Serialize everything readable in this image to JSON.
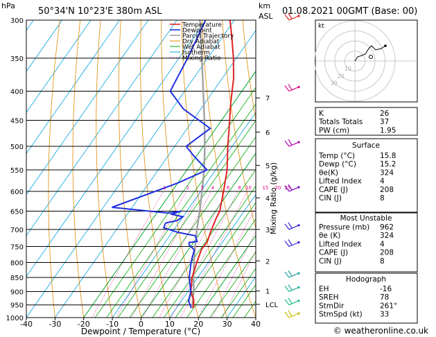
{
  "header": {
    "hpa_label": "hPa",
    "location": "50°34'N  10°23'E  380m  ASL",
    "km_label": "km",
    "asl_label": "ASL",
    "datetime": "01.08.2021  00GMT  (Base: 00)"
  },
  "footer": {
    "credit": "© weatheronline.co.uk"
  },
  "chart_data": {
    "type": "line",
    "title": "",
    "xlabel": "Dewpoint / Temperature (°C)",
    "ylabel": "hPa",
    "right_axis_label": "Mixing Ratio (g/kg)",
    "xlim": [
      -40,
      40
    ],
    "ylim": [
      1000,
      300
    ],
    "x_ticks": [
      -40,
      -30,
      -20,
      -10,
      0,
      10,
      20,
      30,
      40
    ],
    "pressure_levels": [
      300,
      350,
      400,
      450,
      500,
      550,
      600,
      650,
      700,
      750,
      800,
      850,
      900,
      950,
      1000
    ],
    "km_ticks": [
      {
        "label": "7",
        "p": 411
      },
      {
        "label": "6",
        "p": 472
      },
      {
        "label": "5",
        "p": 540
      },
      {
        "label": "4",
        "p": 616
      },
      {
        "label": "3",
        "p": 700
      },
      {
        "label": "2",
        "p": 795
      },
      {
        "label": "1",
        "p": 898
      },
      {
        "label": "LCL",
        "p": 948
      }
    ],
    "mixing_ratio_labels": [
      "1",
      "2",
      "3",
      "4",
      "6",
      "8",
      "10",
      "15",
      "20",
      "25"
    ],
    "mixing_ratios": [
      1,
      2,
      3,
      4,
      6,
      8,
      10,
      15,
      20,
      25
    ],
    "legend": [
      "Temperature",
      "Dewpoint",
      "Parcel Trajectory",
      "Dry Adiabat",
      "Wet Adiabat",
      "Isotherm",
      "Mixing Ratio"
    ],
    "colors": {
      "temperature": "#e02020",
      "dewpoint": "#1f2fe0",
      "parcel": "#a0a0a0",
      "dry_adiabat": "#e08a00",
      "wet_adiabat": "#00aa00",
      "isotherm": "#00a0e0",
      "mixing_ratio": "#e0008a"
    },
    "series": [
      {
        "name": "Temperature",
        "points": [
          [
            15.8,
            962
          ],
          [
            14,
            930
          ],
          [
            11,
            900
          ],
          [
            8,
            850
          ],
          [
            6,
            800
          ],
          [
            4.5,
            760
          ],
          [
            4.6,
            735
          ],
          [
            3.5,
            710
          ],
          [
            2,
            670
          ],
          [
            1.5,
            650
          ],
          [
            -2,
            600
          ],
          [
            -6,
            550
          ],
          [
            -11.5,
            500
          ],
          [
            -16,
            460
          ],
          [
            -21,
            420
          ],
          [
            -26,
            380
          ],
          [
            -31,
            350
          ],
          [
            -37,
            320
          ],
          [
            -41.5,
            300
          ]
        ]
      },
      {
        "name": "Dewpoint",
        "points": [
          [
            15.2,
            962
          ],
          [
            12.5,
            935
          ],
          [
            11,
            900
          ],
          [
            7,
            850
          ],
          [
            4,
            800
          ],
          [
            2,
            760
          ],
          [
            -1,
            745
          ],
          [
            -1.5,
            738
          ],
          [
            1,
            735
          ],
          [
            -1,
            718
          ],
          [
            -8,
            708
          ],
          [
            -14,
            695
          ],
          [
            -14.5,
            682
          ],
          [
            -11,
            675
          ],
          [
            -10,
            665
          ],
          [
            -14.5,
            658
          ],
          [
            -12,
            650
          ],
          [
            -16,
            655
          ],
          [
            -37,
            640
          ],
          [
            -20,
            580
          ],
          [
            -13,
            550
          ],
          [
            -21,
            520
          ],
          [
            -26,
            500
          ],
          [
            -22,
            465
          ],
          [
            -36,
            430
          ],
          [
            -45,
            400
          ],
          [
            -47,
            350
          ],
          [
            -50,
            300
          ]
        ]
      },
      {
        "name": "Parcel Trajectory",
        "points": [
          [
            15.8,
            962
          ],
          [
            14.5,
            945
          ],
          [
            12,
            900
          ],
          [
            8.5,
            850
          ],
          [
            5,
            800
          ],
          [
            1.5,
            750
          ],
          [
            -2,
            700
          ],
          [
            -5.5,
            650
          ],
          [
            -9.5,
            600
          ],
          [
            -14,
            550
          ],
          [
            -19.5,
            500
          ],
          [
            -26,
            450
          ],
          [
            -33.5,
            400
          ],
          [
            -42,
            350
          ],
          [
            -52,
            300
          ]
        ]
      }
    ],
    "wind_barbs": [
      {
        "p": 300,
        "color": "#e02020"
      },
      {
        "p": 400,
        "color": "#e0008a"
      },
      {
        "p": 500,
        "color": "#b000b0"
      },
      {
        "p": 600,
        "color": "#8000c0"
      },
      {
        "p": 700,
        "color": "#3020e0"
      },
      {
        "p": 750,
        "color": "#3020e0"
      },
      {
        "p": 850,
        "color": "#20a0a0"
      },
      {
        "p": 900,
        "color": "#20b0a0"
      },
      {
        "p": 950,
        "color": "#20c080"
      },
      {
        "p": 1000,
        "color": "#c0c000"
      }
    ],
    "hodograph": {
      "unit_label": "kt",
      "ring_labels": [
        "10",
        "20",
        "30"
      ],
      "ring_speeds": [
        10,
        20,
        30,
        40
      ]
    }
  },
  "indices": {
    "top": [
      {
        "label": "K",
        "value": "26"
      },
      {
        "label": "Totals Totals",
        "value": "37"
      },
      {
        "label": "PW (cm)",
        "value": "1.95"
      }
    ],
    "surface": {
      "title": "Surface",
      "rows": [
        {
          "label": "Temp (°C)",
          "value": "15.8"
        },
        {
          "label": "Dewp (°C)",
          "value": "15.2"
        },
        {
          "label": "θe(K)",
          "value": "324"
        },
        {
          "label": "Lifted Index",
          "value": "4"
        },
        {
          "label": "CAPE (J)",
          "value": "208"
        },
        {
          "label": "CIN (J)",
          "value": "8"
        }
      ]
    },
    "unstable": {
      "title": "Most Unstable",
      "rows": [
        {
          "label": "Pressure (mb)",
          "value": "962"
        },
        {
          "label": "θe (K)",
          "value": "324"
        },
        {
          "label": "Lifted Index",
          "value": "4"
        },
        {
          "label": "CAPE (J)",
          "value": "208"
        },
        {
          "label": "CIN (J)",
          "value": "8"
        }
      ]
    },
    "hodo": {
      "title": "Hodograph",
      "rows": [
        {
          "label": "EH",
          "value": "-16"
        },
        {
          "label": "SREH",
          "value": "78"
        },
        {
          "label": "StmDir",
          "value": "261°"
        },
        {
          "label": "StmSpd (kt)",
          "value": "33"
        }
      ]
    }
  }
}
